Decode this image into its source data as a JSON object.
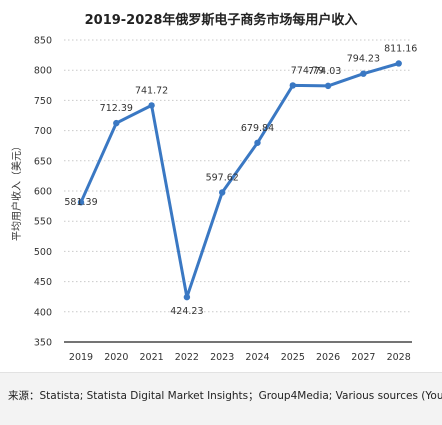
{
  "chart_data": {
    "type": "line",
    "title": "2019-2028年俄罗斯电子商务市场每用户收入",
    "ylabel": "平均用户收入（美元）",
    "xlabel": "",
    "categories": [
      "2019",
      "2020",
      "2021",
      "2022",
      "2023",
      "2024",
      "2025",
      "2026",
      "2027",
      "2028"
    ],
    "series": [
      {
        "values": [
          581.39,
          712.39,
          741.72,
          424.23,
          597.62,
          679.84,
          774.79,
          774.03,
          794.23,
          811.16
        ]
      }
    ],
    "data_labels": [
      "581.39",
      "712.39",
      "741.72",
      "424.23",
      "597.62",
      "679.84",
      "774.79",
      "774.03",
      "794.23",
      "811.16"
    ],
    "yticks": [
      350,
      400,
      450,
      500,
      550,
      600,
      650,
      700,
      750,
      800,
      850
    ],
    "ylim": [
      350,
      850
    ],
    "grid": true,
    "line_color": "#3a78c3"
  },
  "source": "来源：Statista; Statista Digital Market Insights；Group4Media; Various sources (You"
}
